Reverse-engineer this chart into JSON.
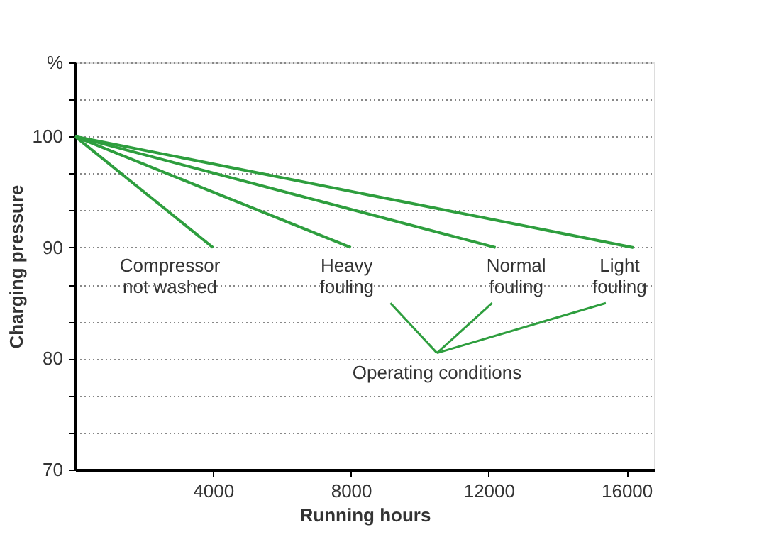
{
  "chart_data": {
    "type": "line",
    "xlabel": "Running hours",
    "ylabel": "Charging pressure",
    "xlim": [
      0,
      16800
    ],
    "xticks": [
      4000,
      8000,
      12000,
      16000
    ],
    "ylim": [
      70,
      106.67
    ],
    "yticks": [
      70,
      {
        "value": 73.33,
        "label": null
      },
      {
        "value": 76.67,
        "label": null
      },
      80,
      {
        "value": 83.33,
        "label": null
      },
      {
        "value": 86.67,
        "label": null
      },
      90,
      {
        "value": 93.33,
        "label": null
      },
      {
        "value": 96.67,
        "label": null
      },
      100,
      {
        "value": 103.33,
        "label": null
      },
      {
        "value": 106.67,
        "label": "%"
      }
    ],
    "grid": "y",
    "marker": "none",
    "line_style": "solid",
    "series": [
      {
        "color": "#2e9e3e",
        "x": [
          0,
          4000
        ],
        "values": [
          100,
          90
        ]
      },
      {
        "color": "#2e9e3e",
        "x": [
          0,
          8000
        ],
        "values": [
          100,
          90
        ]
      },
      {
        "color": "#2e9e3e",
        "x": [
          0,
          12200
        ],
        "values": [
          100,
          90
        ]
      },
      {
        "color": "#2e9e3e",
        "x": [
          0,
          16200
        ],
        "values": [
          100,
          90
        ]
      }
    ],
    "annotations": [
      {
        "text": "Compressor\nnot washed",
        "x": 4000,
        "y": 90
      },
      {
        "text": "Heavy\nfouling",
        "x": 8000,
        "y": 90
      },
      {
        "text": "Normal\nfouling",
        "x": 12200,
        "y": 90
      },
      {
        "text": "Light\nfouling",
        "x": 16200,
        "y": 90
      },
      "Operating conditions"
    ]
  }
}
